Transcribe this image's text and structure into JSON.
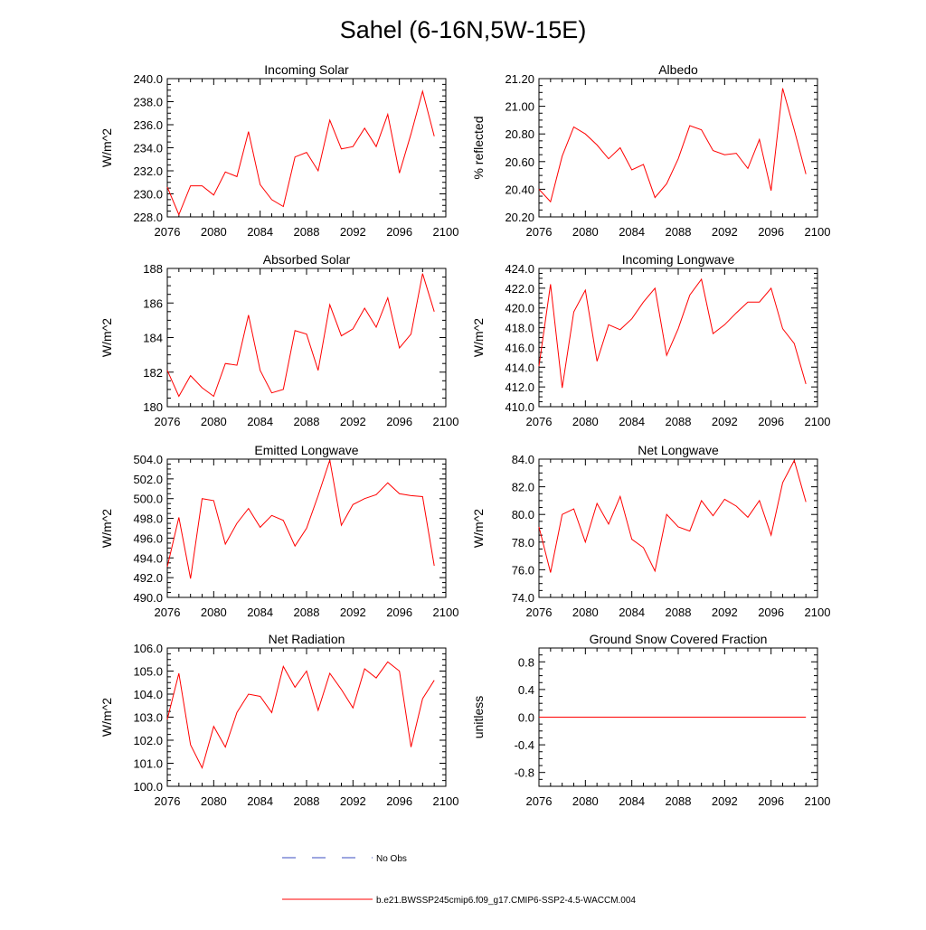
{
  "figure": {
    "title": "Sahel (6-16N,5W-15E)"
  },
  "legend": {
    "obs_label": "No Obs",
    "obs_color": "#3b4cc0",
    "model_label": "b.e21.BWSSP245cmip6.f09_g17.CMIP6-SSP2-4.5-WACCM.004",
    "model_color": "#ff0000"
  },
  "chart_data": [
    {
      "type": "line",
      "title": "Incoming Solar",
      "ylabel": "W/m^2",
      "xlim": [
        2076,
        2100
      ],
      "ylim": [
        228,
        240
      ],
      "x_ticks": [
        "2076",
        "2080",
        "2084",
        "2088",
        "2092",
        "2096",
        "2100"
      ],
      "y_ticks": [
        "228.0",
        "230.0",
        "232.0",
        "234.0",
        "236.0",
        "238.0",
        "240.0"
      ],
      "x": [
        2076,
        2077,
        2078,
        2079,
        2080,
        2081,
        2082,
        2083,
        2084,
        2085,
        2086,
        2087,
        2088,
        2089,
        2090,
        2091,
        2092,
        2093,
        2094,
        2095,
        2096,
        2097,
        2098,
        2099
      ],
      "values": [
        230.6,
        228.2,
        230.7,
        230.7,
        229.9,
        231.9,
        231.5,
        235.4,
        230.8,
        229.5,
        228.9,
        233.2,
        233.6,
        232.0,
        236.4,
        233.9,
        234.1,
        235.7,
        234.1,
        236.9,
        231.8,
        235.2,
        238.9,
        235.0
      ]
    },
    {
      "type": "line",
      "title": "Albedo",
      "ylabel": "% reflected",
      "xlim": [
        2076,
        2100
      ],
      "ylim": [
        20.2,
        21.2
      ],
      "x_ticks": [
        "2076",
        "2080",
        "2084",
        "2088",
        "2092",
        "2096",
        "2100"
      ],
      "y_ticks": [
        "20.20",
        "20.40",
        "20.60",
        "20.80",
        "21.00",
        "21.20"
      ],
      "x": [
        2076,
        2077,
        2078,
        2079,
        2080,
        2081,
        2082,
        2083,
        2084,
        2085,
        2086,
        2087,
        2088,
        2089,
        2090,
        2091,
        2092,
        2093,
        2094,
        2095,
        2096,
        2097,
        2098,
        2099
      ],
      "values": [
        20.4,
        20.31,
        20.64,
        20.85,
        20.8,
        20.72,
        20.62,
        20.7,
        20.54,
        20.58,
        20.34,
        20.44,
        20.62,
        20.86,
        20.83,
        20.68,
        20.65,
        20.66,
        20.55,
        20.76,
        20.39,
        21.13,
        20.83,
        20.51
      ]
    },
    {
      "type": "line",
      "title": "Absorbed Solar",
      "ylabel": "W/m^2",
      "xlim": [
        2076,
        2100
      ],
      "ylim": [
        180,
        188
      ],
      "x_ticks": [
        "2076",
        "2080",
        "2084",
        "2088",
        "2092",
        "2096",
        "2100"
      ],
      "y_ticks": [
        "180",
        "182",
        "184",
        "186",
        "188"
      ],
      "x": [
        2076,
        2077,
        2078,
        2079,
        2080,
        2081,
        2082,
        2083,
        2084,
        2085,
        2086,
        2087,
        2088,
        2089,
        2090,
        2091,
        2092,
        2093,
        2094,
        2095,
        2096,
        2097,
        2098,
        2099
      ],
      "values": [
        182.1,
        180.6,
        181.8,
        181.1,
        180.6,
        182.5,
        182.4,
        185.3,
        182.1,
        180.8,
        181.0,
        184.4,
        184.2,
        182.1,
        185.9,
        184.1,
        184.5,
        185.7,
        184.6,
        186.3,
        183.4,
        184.2,
        187.7,
        185.5
      ]
    },
    {
      "type": "line",
      "title": "Incoming Longwave",
      "ylabel": "W/m^2",
      "xlim": [
        2076,
        2100
      ],
      "ylim": [
        410,
        424
      ],
      "x_ticks": [
        "2076",
        "2080",
        "2084",
        "2088",
        "2092",
        "2096",
        "2100"
      ],
      "y_ticks": [
        "410.0",
        "412.0",
        "414.0",
        "416.0",
        "418.0",
        "420.0",
        "422.0",
        "424.0"
      ],
      "x": [
        2076,
        2077,
        2078,
        2079,
        2080,
        2081,
        2082,
        2083,
        2084,
        2085,
        2086,
        2087,
        2088,
        2089,
        2090,
        2091,
        2092,
        2093,
        2094,
        2095,
        2096,
        2097,
        2098,
        2099
      ],
      "values": [
        414.1,
        422.4,
        411.9,
        419.6,
        421.8,
        414.6,
        418.3,
        417.8,
        418.9,
        420.6,
        422.0,
        415.2,
        417.9,
        421.3,
        422.9,
        417.4,
        418.3,
        419.5,
        420.6,
        420.6,
        422.0,
        417.9,
        416.4,
        412.3
      ]
    },
    {
      "type": "line",
      "title": "Emitted Longwave",
      "ylabel": "W/m^2",
      "xlim": [
        2076,
        2100
      ],
      "ylim": [
        490,
        504
      ],
      "x_ticks": [
        "2076",
        "2080",
        "2084",
        "2088",
        "2092",
        "2096",
        "2100"
      ],
      "y_ticks": [
        "490.0",
        "492.0",
        "494.0",
        "496.0",
        "498.0",
        "500.0",
        "502.0",
        "504.0"
      ],
      "x": [
        2076,
        2077,
        2078,
        2079,
        2080,
        2081,
        2082,
        2083,
        2084,
        2085,
        2086,
        2087,
        2088,
        2089,
        2090,
        2091,
        2092,
        2093,
        2094,
        2095,
        2096,
        2097,
        2098,
        2099
      ],
      "values": [
        493.1,
        498.1,
        491.9,
        500.0,
        499.8,
        495.4,
        497.5,
        499.0,
        497.1,
        498.3,
        497.8,
        495.2,
        497.0,
        500.3,
        503.9,
        497.3,
        499.4,
        500.0,
        500.4,
        501.6,
        500.5,
        500.3,
        500.2,
        493.2
      ]
    },
    {
      "type": "line",
      "title": "Net Longwave",
      "ylabel": "W/m^2",
      "xlim": [
        2076,
        2100
      ],
      "ylim": [
        74,
        84
      ],
      "x_ticks": [
        "2076",
        "2080",
        "2084",
        "2088",
        "2092",
        "2096",
        "2100"
      ],
      "y_ticks": [
        "74.0",
        "76.0",
        "78.0",
        "80.0",
        "82.0",
        "84.0"
      ],
      "x": [
        2076,
        2077,
        2078,
        2079,
        2080,
        2081,
        2082,
        2083,
        2084,
        2085,
        2086,
        2087,
        2088,
        2089,
        2090,
        2091,
        2092,
        2093,
        2094,
        2095,
        2096,
        2097,
        2098,
        2099
      ],
      "values": [
        79.1,
        75.8,
        80.0,
        80.4,
        78.0,
        80.8,
        79.3,
        81.3,
        78.2,
        77.6,
        75.9,
        80.0,
        79.1,
        78.8,
        81.0,
        79.9,
        81.1,
        80.6,
        79.8,
        81.0,
        78.5,
        82.3,
        83.9,
        80.9
      ]
    },
    {
      "type": "line",
      "title": "Net Radiation",
      "ylabel": "W/m^2",
      "xlim": [
        2076,
        2100
      ],
      "ylim": [
        100,
        106
      ],
      "x_ticks": [
        "2076",
        "2080",
        "2084",
        "2088",
        "2092",
        "2096",
        "2100"
      ],
      "y_ticks": [
        "100.0",
        "101.0",
        "102.0",
        "103.0",
        "104.0",
        "105.0",
        "106.0"
      ],
      "x": [
        2076,
        2077,
        2078,
        2079,
        2080,
        2081,
        2082,
        2083,
        2084,
        2085,
        2086,
        2087,
        2088,
        2089,
        2090,
        2091,
        2092,
        2093,
        2094,
        2095,
        2096,
        2097,
        2098,
        2099
      ],
      "values": [
        102.9,
        104.9,
        101.8,
        100.8,
        102.6,
        101.7,
        103.2,
        104.0,
        103.9,
        103.2,
        105.2,
        104.3,
        105.0,
        103.3,
        104.9,
        104.2,
        103.4,
        105.1,
        104.7,
        105.4,
        105.0,
        101.7,
        103.8,
        104.6
      ]
    },
    {
      "type": "line",
      "title": "Ground Snow Covered Fraction",
      "ylabel": "unitless",
      "xlim": [
        2076,
        2100
      ],
      "ylim": [
        -1,
        1
      ],
      "x_ticks": [
        "2076",
        "2080",
        "2084",
        "2088",
        "2092",
        "2096",
        "2100"
      ],
      "y_ticks": [
        "-0.8",
        "-0.4",
        "0.0",
        "0.4",
        "0.8"
      ],
      "x": [
        2076,
        2077,
        2078,
        2079,
        2080,
        2081,
        2082,
        2083,
        2084,
        2085,
        2086,
        2087,
        2088,
        2089,
        2090,
        2091,
        2092,
        2093,
        2094,
        2095,
        2096,
        2097,
        2098,
        2099
      ],
      "values": [
        0,
        0,
        0,
        0,
        0,
        0,
        0,
        0,
        0,
        0,
        0,
        0,
        0,
        0,
        0,
        0,
        0,
        0,
        0,
        0,
        0,
        0,
        0,
        0
      ]
    }
  ]
}
